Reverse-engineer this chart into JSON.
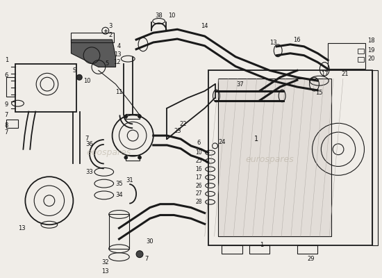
{
  "bg_color": "#f0ede8",
  "line_color": "#1a1a1a",
  "fig_width": 5.5,
  "fig_height": 4.0,
  "dpi": 100,
  "watermark1": "eoospares",
  "watermark2": "eurospares"
}
